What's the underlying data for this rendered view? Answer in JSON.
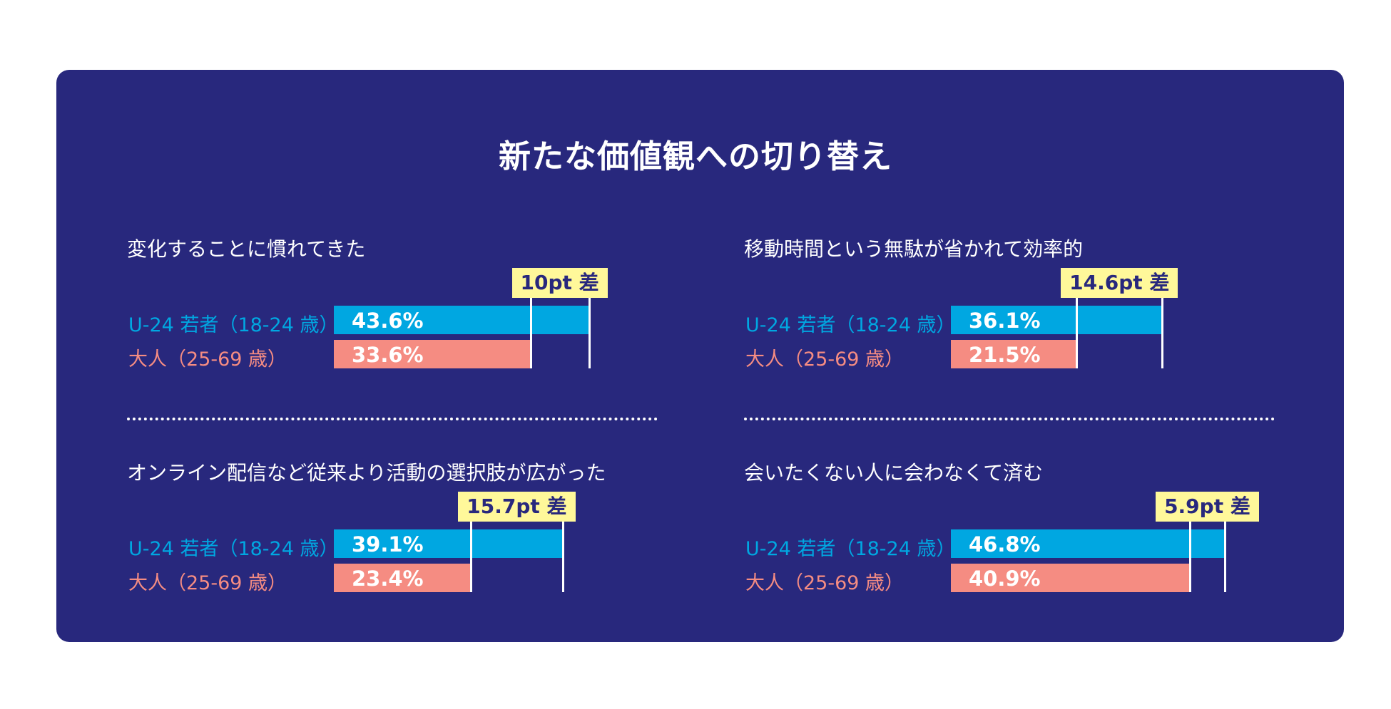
{
  "title": "新たな価値観への切り替え",
  "legend": {
    "youth": "U-24 若者（18-24 歳）",
    "adult": "大人（25-69 歳）"
  },
  "colors": {
    "background": "#28287d",
    "youth": "#00a7e1",
    "adult": "#f58c82",
    "badge": "#fff89a"
  },
  "chart_data": [
    {
      "type": "bar",
      "title": "変化することに慣れてきた",
      "series": [
        {
          "name": "U-24 若者（18-24 歳）",
          "values": [
            43.6
          ],
          "label": "43.6%"
        },
        {
          "name": "大人（25-69 歳）",
          "values": [
            33.6
          ],
          "label": "33.6%"
        }
      ],
      "difference": "10pt 差",
      "xlim": [
        0,
        100
      ]
    },
    {
      "type": "bar",
      "title": "移動時間という無駄が省かれて効率的",
      "series": [
        {
          "name": "U-24 若者（18-24 歳）",
          "values": [
            36.1
          ],
          "label": "36.1%"
        },
        {
          "name": "大人（25-69 歳）",
          "values": [
            21.5
          ],
          "label": "21.5%"
        }
      ],
      "difference": "14.6pt 差",
      "xlim": [
        0,
        100
      ]
    },
    {
      "type": "bar",
      "title": "オンライン配信など従来より活動の選択肢が広がった",
      "series": [
        {
          "name": "U-24 若者（18-24 歳）",
          "values": [
            39.1
          ],
          "label": "39.1%"
        },
        {
          "name": "大人（25-69 歳）",
          "values": [
            23.4
          ],
          "label": "23.4%"
        }
      ],
      "difference": "15.7pt 差",
      "xlim": [
        0,
        100
      ]
    },
    {
      "type": "bar",
      "title": "会いたくない人に会わなくて済む",
      "series": [
        {
          "name": "U-24 若者（18-24 歳）",
          "values": [
            46.8
          ],
          "label": "46.8%"
        },
        {
          "name": "大人（25-69 歳）",
          "values": [
            40.9
          ],
          "label": "40.9%"
        }
      ],
      "difference": "5.9pt 差",
      "xlim": [
        0,
        100
      ]
    }
  ]
}
